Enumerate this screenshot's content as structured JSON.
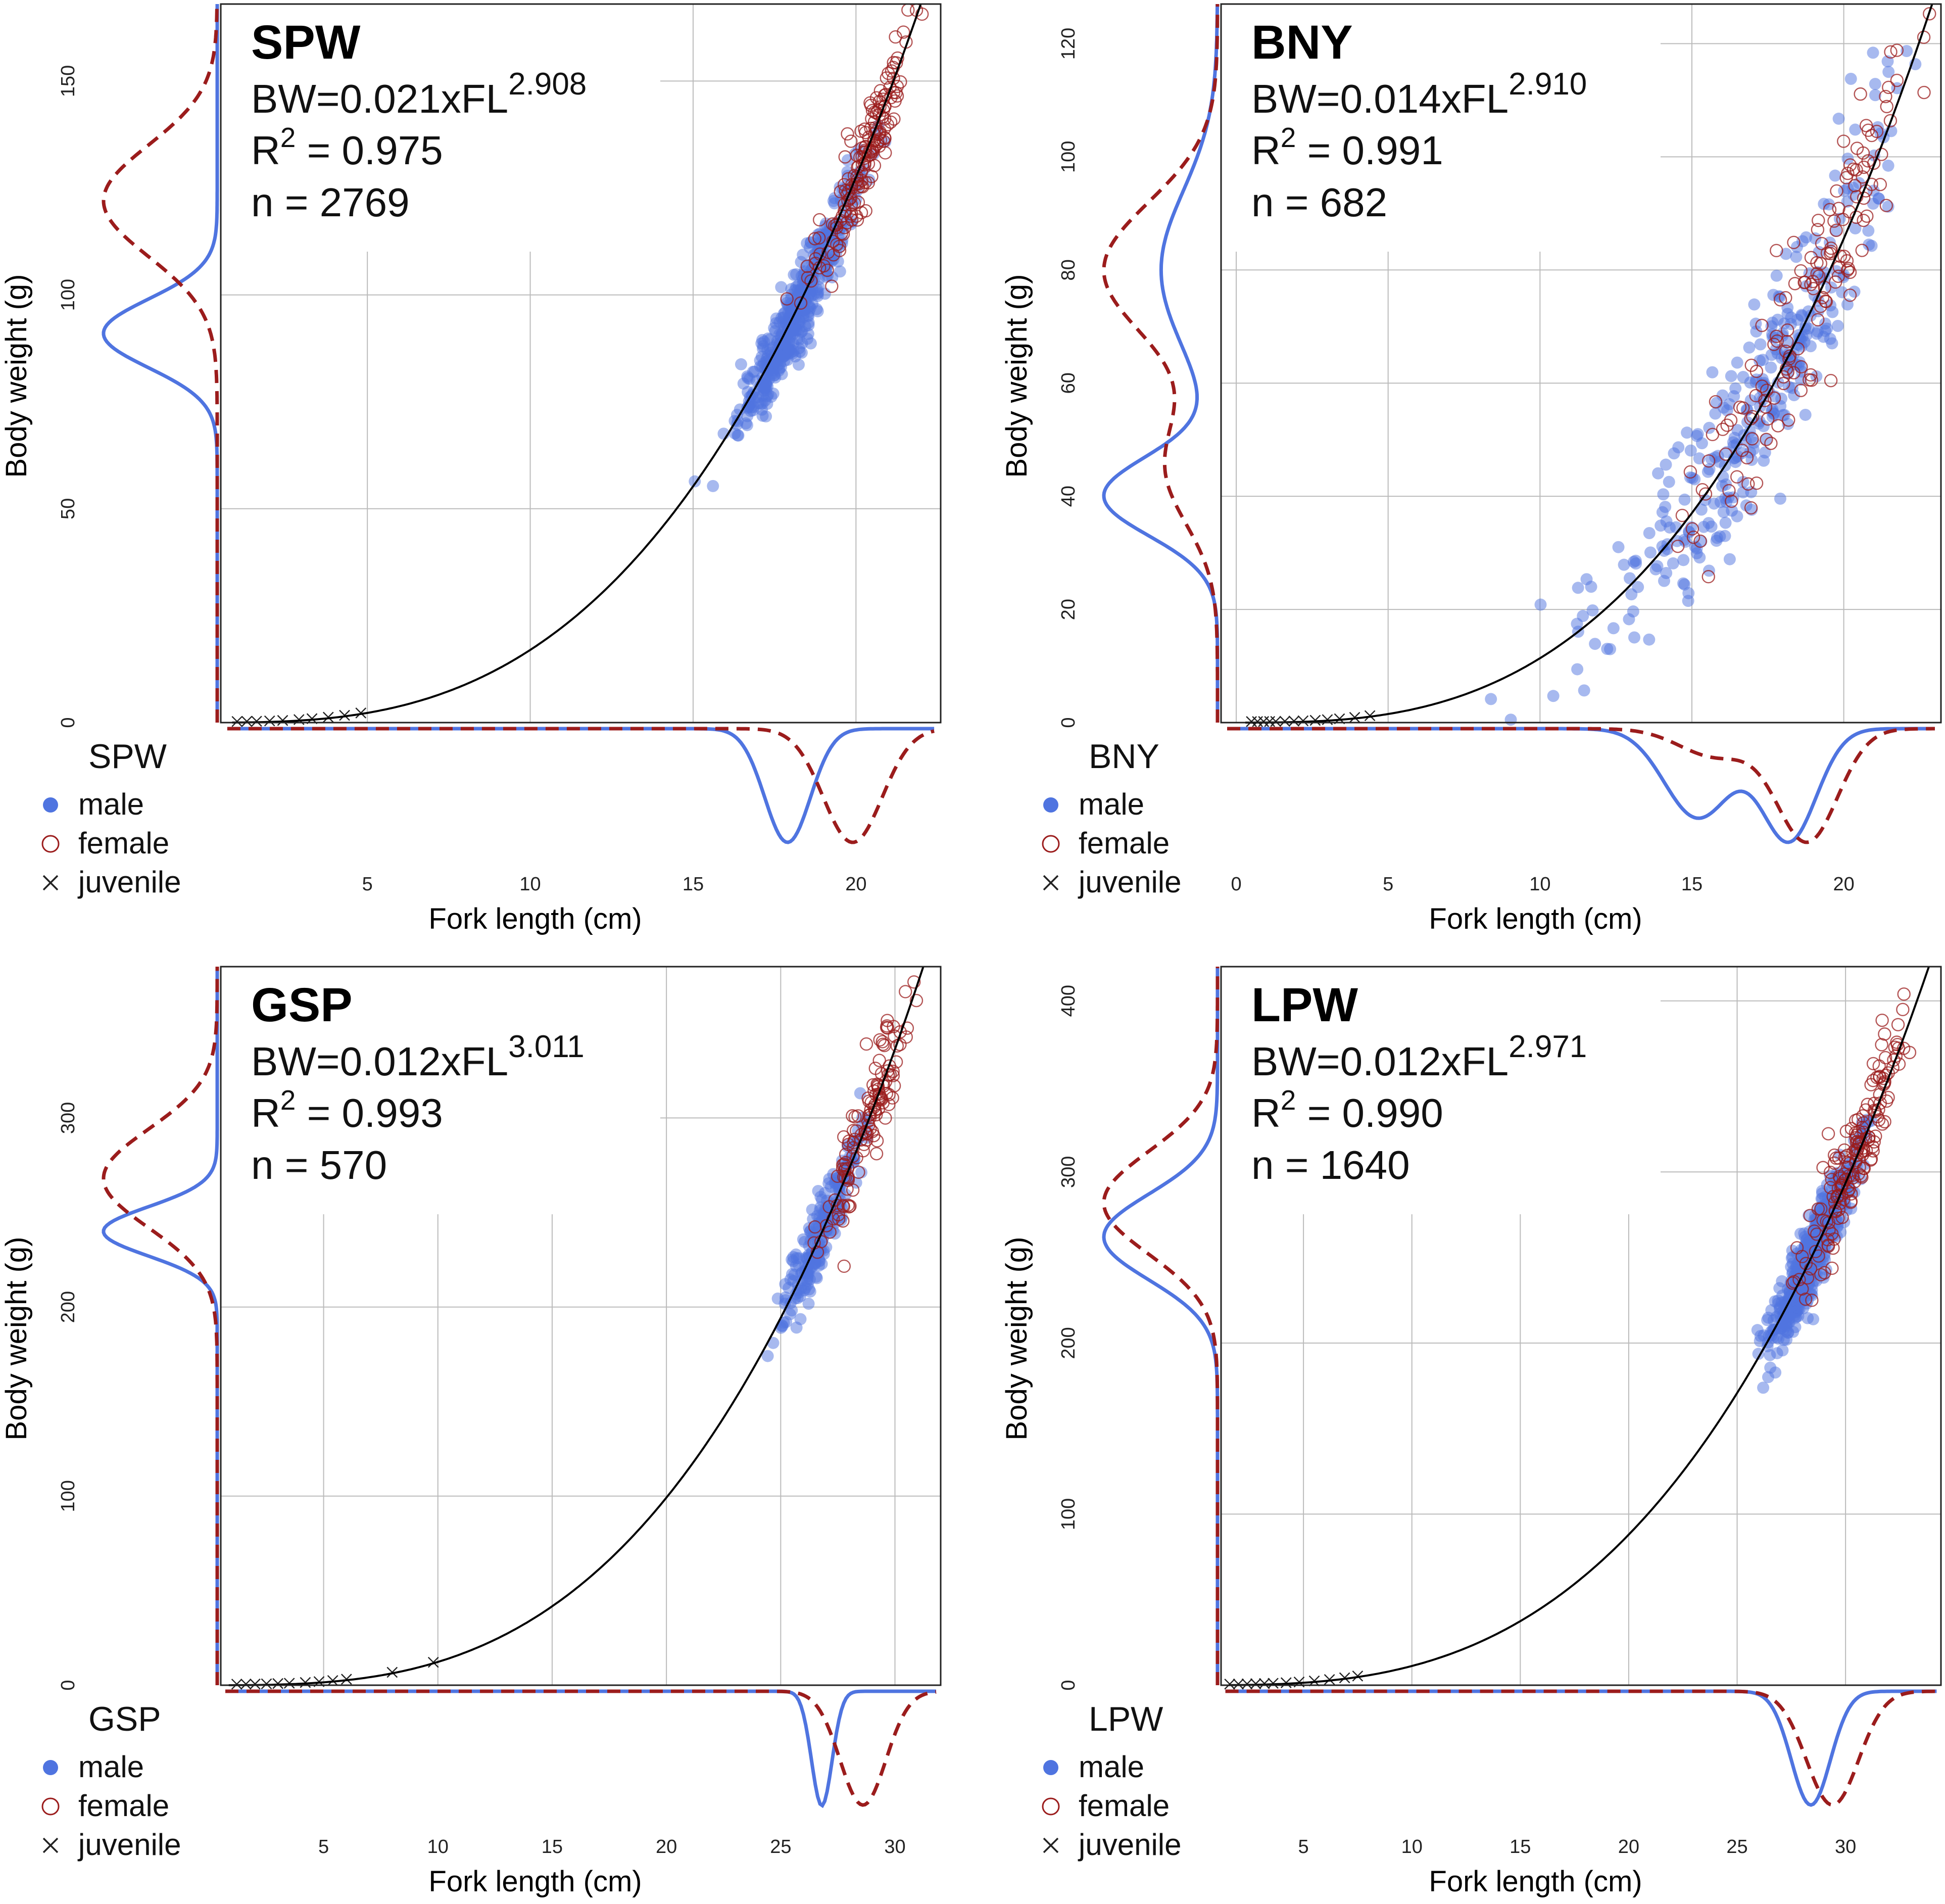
{
  "legend_labels": {
    "male": "male",
    "female": "female",
    "juvenile": "juvenile"
  },
  "colors": {
    "male": "#4f74e0",
    "female": "#9b1c1c",
    "juvenile": "#222222",
    "curve": "#000000",
    "grid": "#bbbbbb"
  },
  "chart_data": [
    {
      "type": "scatter",
      "species": "SPW",
      "title": "SPW",
      "equation_prefix": "BW=0.021xFL",
      "exponent": "2.908",
      "r2_label": "R",
      "r2_sup": "2",
      "r2_value": " = 0.975",
      "n_label": "n = 2769",
      "xlabel": "Fork length (cm)",
      "ylabel": "Body weight (g)",
      "a": 0.021,
      "b": 2.908,
      "xlim": [
        0.5,
        22.6
      ],
      "ylim": [
        0,
        168
      ],
      "xticks": [
        5,
        10,
        15,
        20
      ],
      "yticks": [
        0,
        50,
        100,
        150
      ],
      "male_center": [
        18.2,
        90
      ],
      "male_spread": [
        0.9,
        10
      ],
      "male_count": 450,
      "female_center": [
        20.2,
        130
      ],
      "female_spread": [
        0.8,
        12
      ],
      "female_count": 170,
      "juvenile_x": [
        1.0,
        1.3,
        1.6,
        2.0,
        2.4,
        2.9,
        3.3,
        3.8,
        4.3,
        4.8
      ],
      "density_male_y": [
        {
          "mu": 91,
          "sd": 8,
          "w": 1
        }
      ],
      "density_female_y": [
        {
          "mu": 122,
          "sd": 13,
          "w": 1
        }
      ],
      "density_male_x": [
        {
          "mu": 17.9,
          "sd": 0.7,
          "w": 1
        }
      ],
      "density_female_x": [
        {
          "mu": 19.9,
          "sd": 0.9,
          "w": 1
        }
      ]
    },
    {
      "type": "scatter",
      "species": "BNY",
      "title": "BNY",
      "equation_prefix": "BW=0.014xFL",
      "exponent": "2.910",
      "r2_label": "R",
      "r2_sup": "2",
      "r2_value": " = 0.991",
      "n_label": "n = 682",
      "xlabel": "Fork length (cm)",
      "ylabel": "Body weight (g)",
      "a": 0.014,
      "b": 2.91,
      "xlim": [
        -0.5,
        23.2
      ],
      "ylim": [
        0,
        127
      ],
      "xticks": [
        0,
        5,
        10,
        15,
        20
      ],
      "yticks": [
        0,
        20,
        40,
        60,
        80,
        100,
        120
      ],
      "male_center": [
        17.0,
        60
      ],
      "male_spread": [
        2.6,
        20
      ],
      "male_count": 330,
      "female_center": [
        18.7,
        80
      ],
      "female_spread": [
        2.0,
        15
      ],
      "female_count": 150,
      "juvenile_x": [
        0.5,
        0.7,
        0.9,
        1.1,
        1.3,
        1.6,
        1.9,
        2.2,
        2.6,
        3.0,
        3.4,
        3.9,
        4.4
      ],
      "density_male_y": [
        {
          "mu": 40,
          "sd": 7,
          "w": 1
        },
        {
          "mu": 80,
          "sd": 14,
          "w": 0.5
        }
      ],
      "density_female_y": [
        {
          "mu": 80,
          "sd": 12,
          "w": 1
        },
        {
          "mu": 45,
          "sd": 10,
          "w": 0.45
        }
      ],
      "density_male_x": [
        {
          "mu": 15.2,
          "sd": 1.1,
          "w": 0.8
        },
        {
          "mu": 18.2,
          "sd": 0.9,
          "w": 1
        }
      ],
      "density_female_x": [
        {
          "mu": 18.8,
          "sd": 1.0,
          "w": 1
        },
        {
          "mu": 15.8,
          "sd": 1.2,
          "w": 0.25
        }
      ]
    },
    {
      "type": "scatter",
      "species": "GSP",
      "title": "GSP",
      "equation_prefix": "BW=0.012xFL",
      "exponent": "3.011",
      "r2_label": "R",
      "r2_sup": "2",
      "r2_value": " = 0.993",
      "n_label": "n = 570",
      "xlabel": "Fork length (cm)",
      "ylabel": "Body weight (g)",
      "a": 0.012,
      "b": 3.011,
      "xlim": [
        0.5,
        32.0
      ],
      "ylim": [
        0,
        380
      ],
      "xticks": [
        5,
        10,
        15,
        20,
        25,
        30
      ],
      "yticks": [
        0,
        100,
        200,
        300
      ],
      "male_center": [
        26.8,
        240
      ],
      "male_spread": [
        0.9,
        22
      ],
      "male_count": 240,
      "female_center": [
        28.8,
        295
      ],
      "female_spread": [
        1.0,
        30
      ],
      "female_count": 130,
      "juvenile_x": [
        1.2,
        1.6,
        2.0,
        2.5,
        3.0,
        3.5,
        4.2,
        4.8,
        5.4,
        6.0,
        8.0,
        9.8
      ],
      "density_male_y": [
        {
          "mu": 240,
          "sd": 13,
          "w": 1
        }
      ],
      "density_female_y": [
        {
          "mu": 268,
          "sd": 26,
          "w": 1
        }
      ],
      "density_male_x": [
        {
          "mu": 26.8,
          "sd": 0.45,
          "w": 1
        }
      ],
      "density_female_x": [
        {
          "mu": 28.6,
          "sd": 1.0,
          "w": 1
        }
      ]
    },
    {
      "type": "scatter",
      "species": "LPW",
      "title": "LPW",
      "equation_prefix": "BW=0.012xFL",
      "exponent": "2.971",
      "r2_label": "R",
      "r2_sup": "2",
      "r2_value": " = 0.990",
      "n_label": "n = 1640",
      "xlabel": "Fork length (cm)",
      "ylabel": "Body weight (g)",
      "a": 0.012,
      "b": 2.971,
      "xlim": [
        1.2,
        34.4
      ],
      "ylim": [
        0,
        420
      ],
      "xticks": [
        5,
        10,
        15,
        20,
        25,
        30
      ],
      "yticks": [
        0,
        100,
        200,
        300,
        400
      ],
      "male_center": [
        28.4,
        245
      ],
      "male_spread": [
        1.0,
        25
      ],
      "male_count": 480,
      "female_center": [
        30.3,
        310
      ],
      "female_spread": [
        1.2,
        35
      ],
      "female_count": 170,
      "juvenile_x": [
        1.6,
        2.0,
        2.4,
        2.8,
        3.2,
        3.6,
        4.2,
        4.8,
        5.5,
        6.2,
        6.9,
        7.5
      ],
      "density_male_y": [
        {
          "mu": 262,
          "sd": 25,
          "w": 1
        }
      ],
      "density_female_y": [
        {
          "mu": 282,
          "sd": 30,
          "w": 1
        }
      ],
      "density_male_x": [
        {
          "mu": 28.4,
          "sd": 0.9,
          "w": 1
        }
      ],
      "density_female_x": [
        {
          "mu": 29.4,
          "sd": 1.2,
          "w": 1
        }
      ]
    }
  ]
}
